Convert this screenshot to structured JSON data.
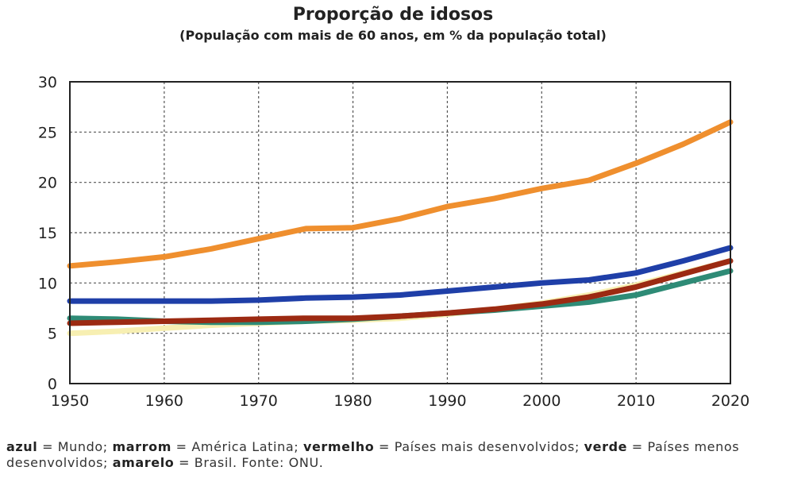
{
  "chart_data": {
    "type": "line",
    "title": "Proporção de idosos",
    "subtitle": "(População com mais de 60 anos, em % da população total)",
    "x": [
      1950,
      1955,
      1960,
      1965,
      1970,
      1975,
      1980,
      1985,
      1990,
      1995,
      2000,
      2005,
      2010,
      2015,
      2020
    ],
    "xticks": [
      1950,
      1960,
      1970,
      1980,
      1990,
      2000,
      2010,
      2020
    ],
    "yticks": [
      0,
      5,
      10,
      15,
      20,
      25,
      30
    ],
    "xlim": [
      1950,
      2020
    ],
    "ylim": [
      0,
      30
    ],
    "grid": true,
    "series": [
      {
        "name": "amarelo",
        "color": "#f7efb2",
        "values": [
          5.0,
          5.2,
          5.5,
          5.8,
          6.0,
          6.2,
          6.3,
          6.5,
          6.9,
          7.4,
          8.0,
          8.8,
          9.8,
          11.0,
          12.2
        ]
      },
      {
        "name": "verde",
        "color": "#2e8b76",
        "values": [
          6.5,
          6.4,
          6.2,
          6.1,
          6.1,
          6.2,
          6.4,
          6.7,
          7.0,
          7.3,
          7.7,
          8.1,
          8.8,
          10.0,
          11.2
        ]
      },
      {
        "name": "marrom",
        "color": "#9c2a12",
        "values": [
          6.0,
          6.1,
          6.2,
          6.3,
          6.4,
          6.5,
          6.5,
          6.7,
          7.0,
          7.4,
          7.9,
          8.6,
          9.6,
          10.9,
          12.2
        ]
      },
      {
        "name": "azul",
        "color": "#1f3fa8",
        "values": [
          8.2,
          8.2,
          8.2,
          8.2,
          8.3,
          8.5,
          8.6,
          8.8,
          9.2,
          9.6,
          10.0,
          10.3,
          11.0,
          12.2,
          13.5
        ]
      },
      {
        "name": "vermelho",
        "color": "#ef8f2e",
        "values": [
          11.7,
          12.1,
          12.6,
          13.4,
          14.4,
          15.4,
          15.5,
          16.4,
          17.6,
          18.4,
          19.4,
          20.2,
          21.9,
          23.8,
          26.0
        ]
      }
    ]
  },
  "caption": {
    "azul": "azul",
    "azul_text": " = Mundo; ",
    "marrom": "marrom",
    "marrom_text": " = América Latina; ",
    "vermelho": "vermelho",
    "vermelho_text": " = Países mais desenvolvidos; ",
    "verde": "verde",
    "verde_text": " = Países menos desenvolvidos; ",
    "amarelo": "amarelo",
    "amarelo_text": " = Brasil. Fonte: ONU."
  }
}
